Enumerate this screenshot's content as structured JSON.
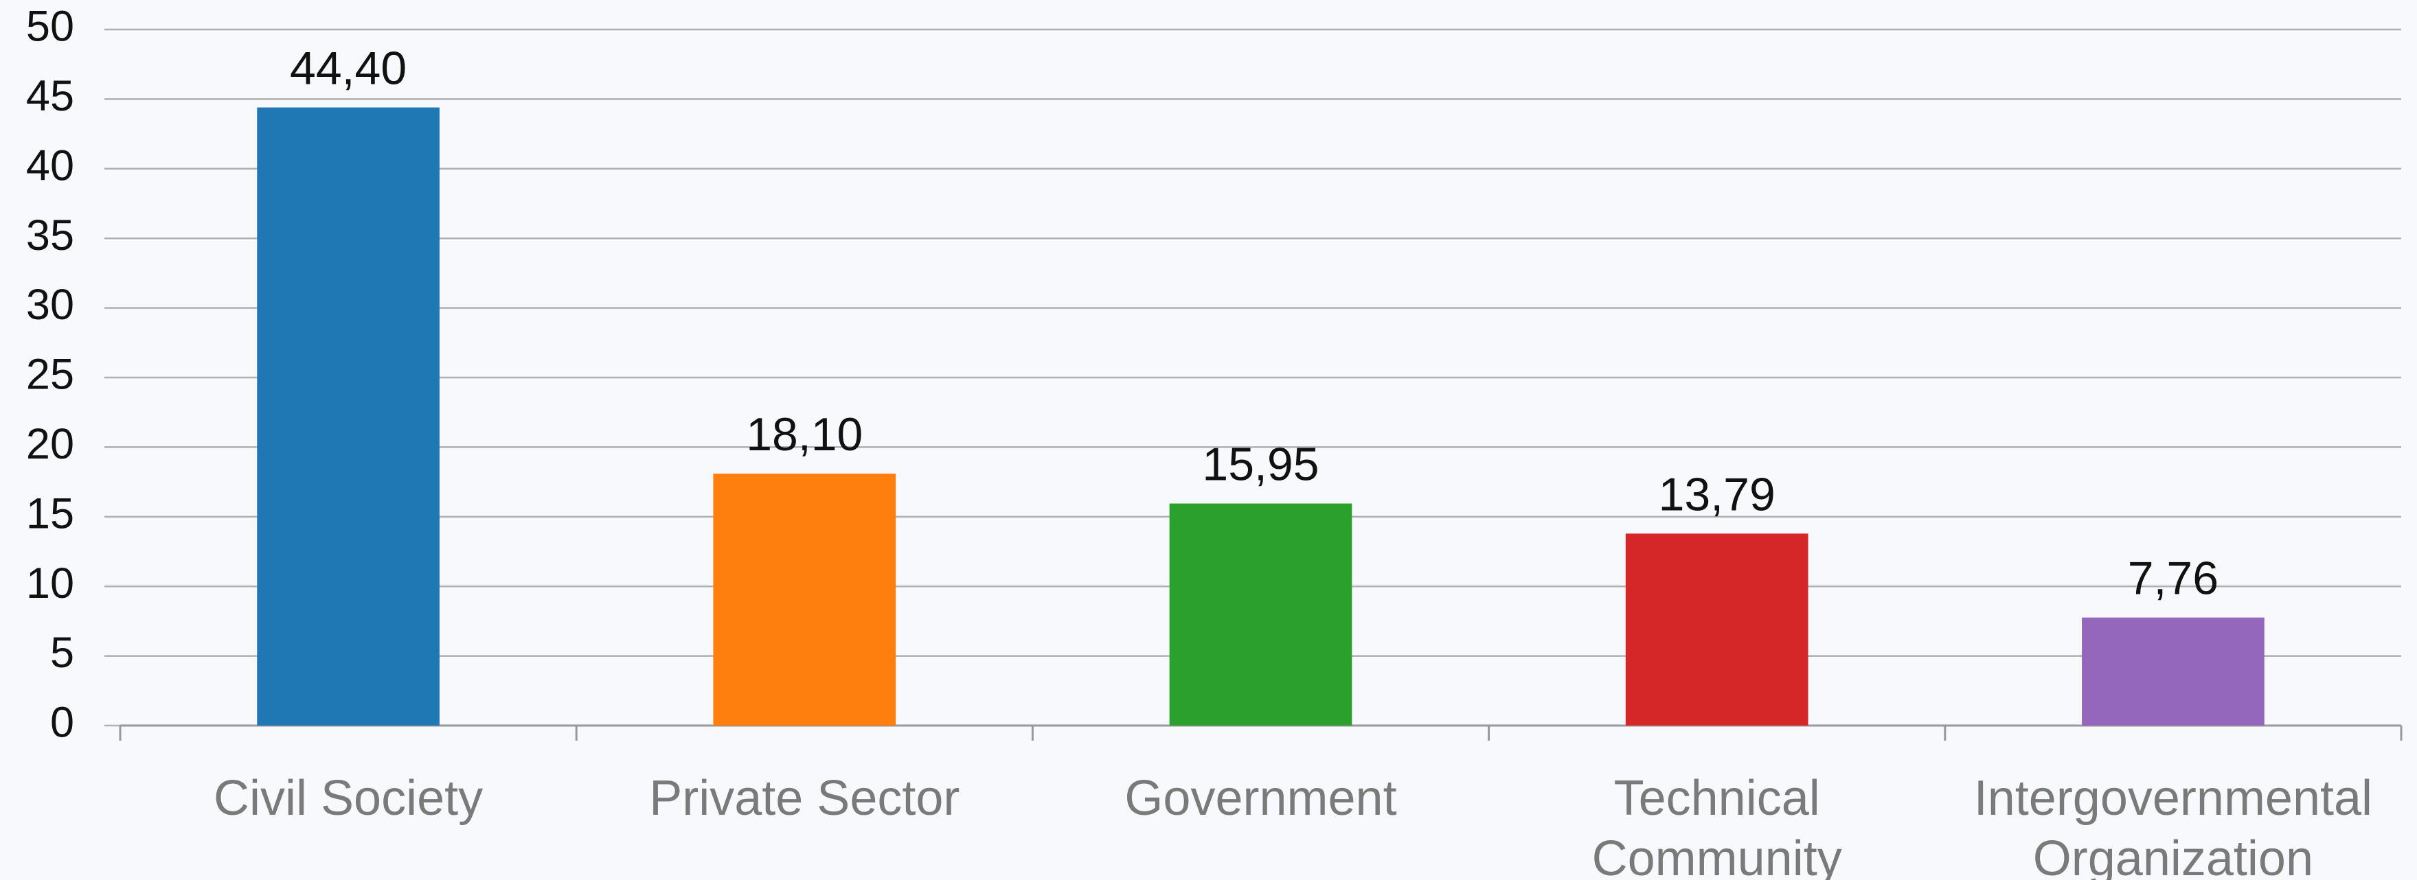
{
  "chart_data": {
    "type": "bar",
    "categories": [
      "Civil Society",
      "Private Sector",
      "Government",
      "Technical Community",
      "Intergovernmental Organization"
    ],
    "values": [
      44.4,
      18.1,
      15.95,
      13.79,
      7.76
    ],
    "value_labels": [
      "44,40",
      "18,10",
      "15,95",
      "13,79",
      "7,76"
    ],
    "colors": [
      "#1f77b4",
      "#ff7f0e",
      "#2ca02c",
      "#d62728",
      "#9467bd"
    ],
    "ylim": [
      0,
      50
    ],
    "yticks": [
      0,
      5,
      10,
      15,
      20,
      25,
      30,
      35,
      40,
      45,
      50
    ],
    "grid": true
  }
}
